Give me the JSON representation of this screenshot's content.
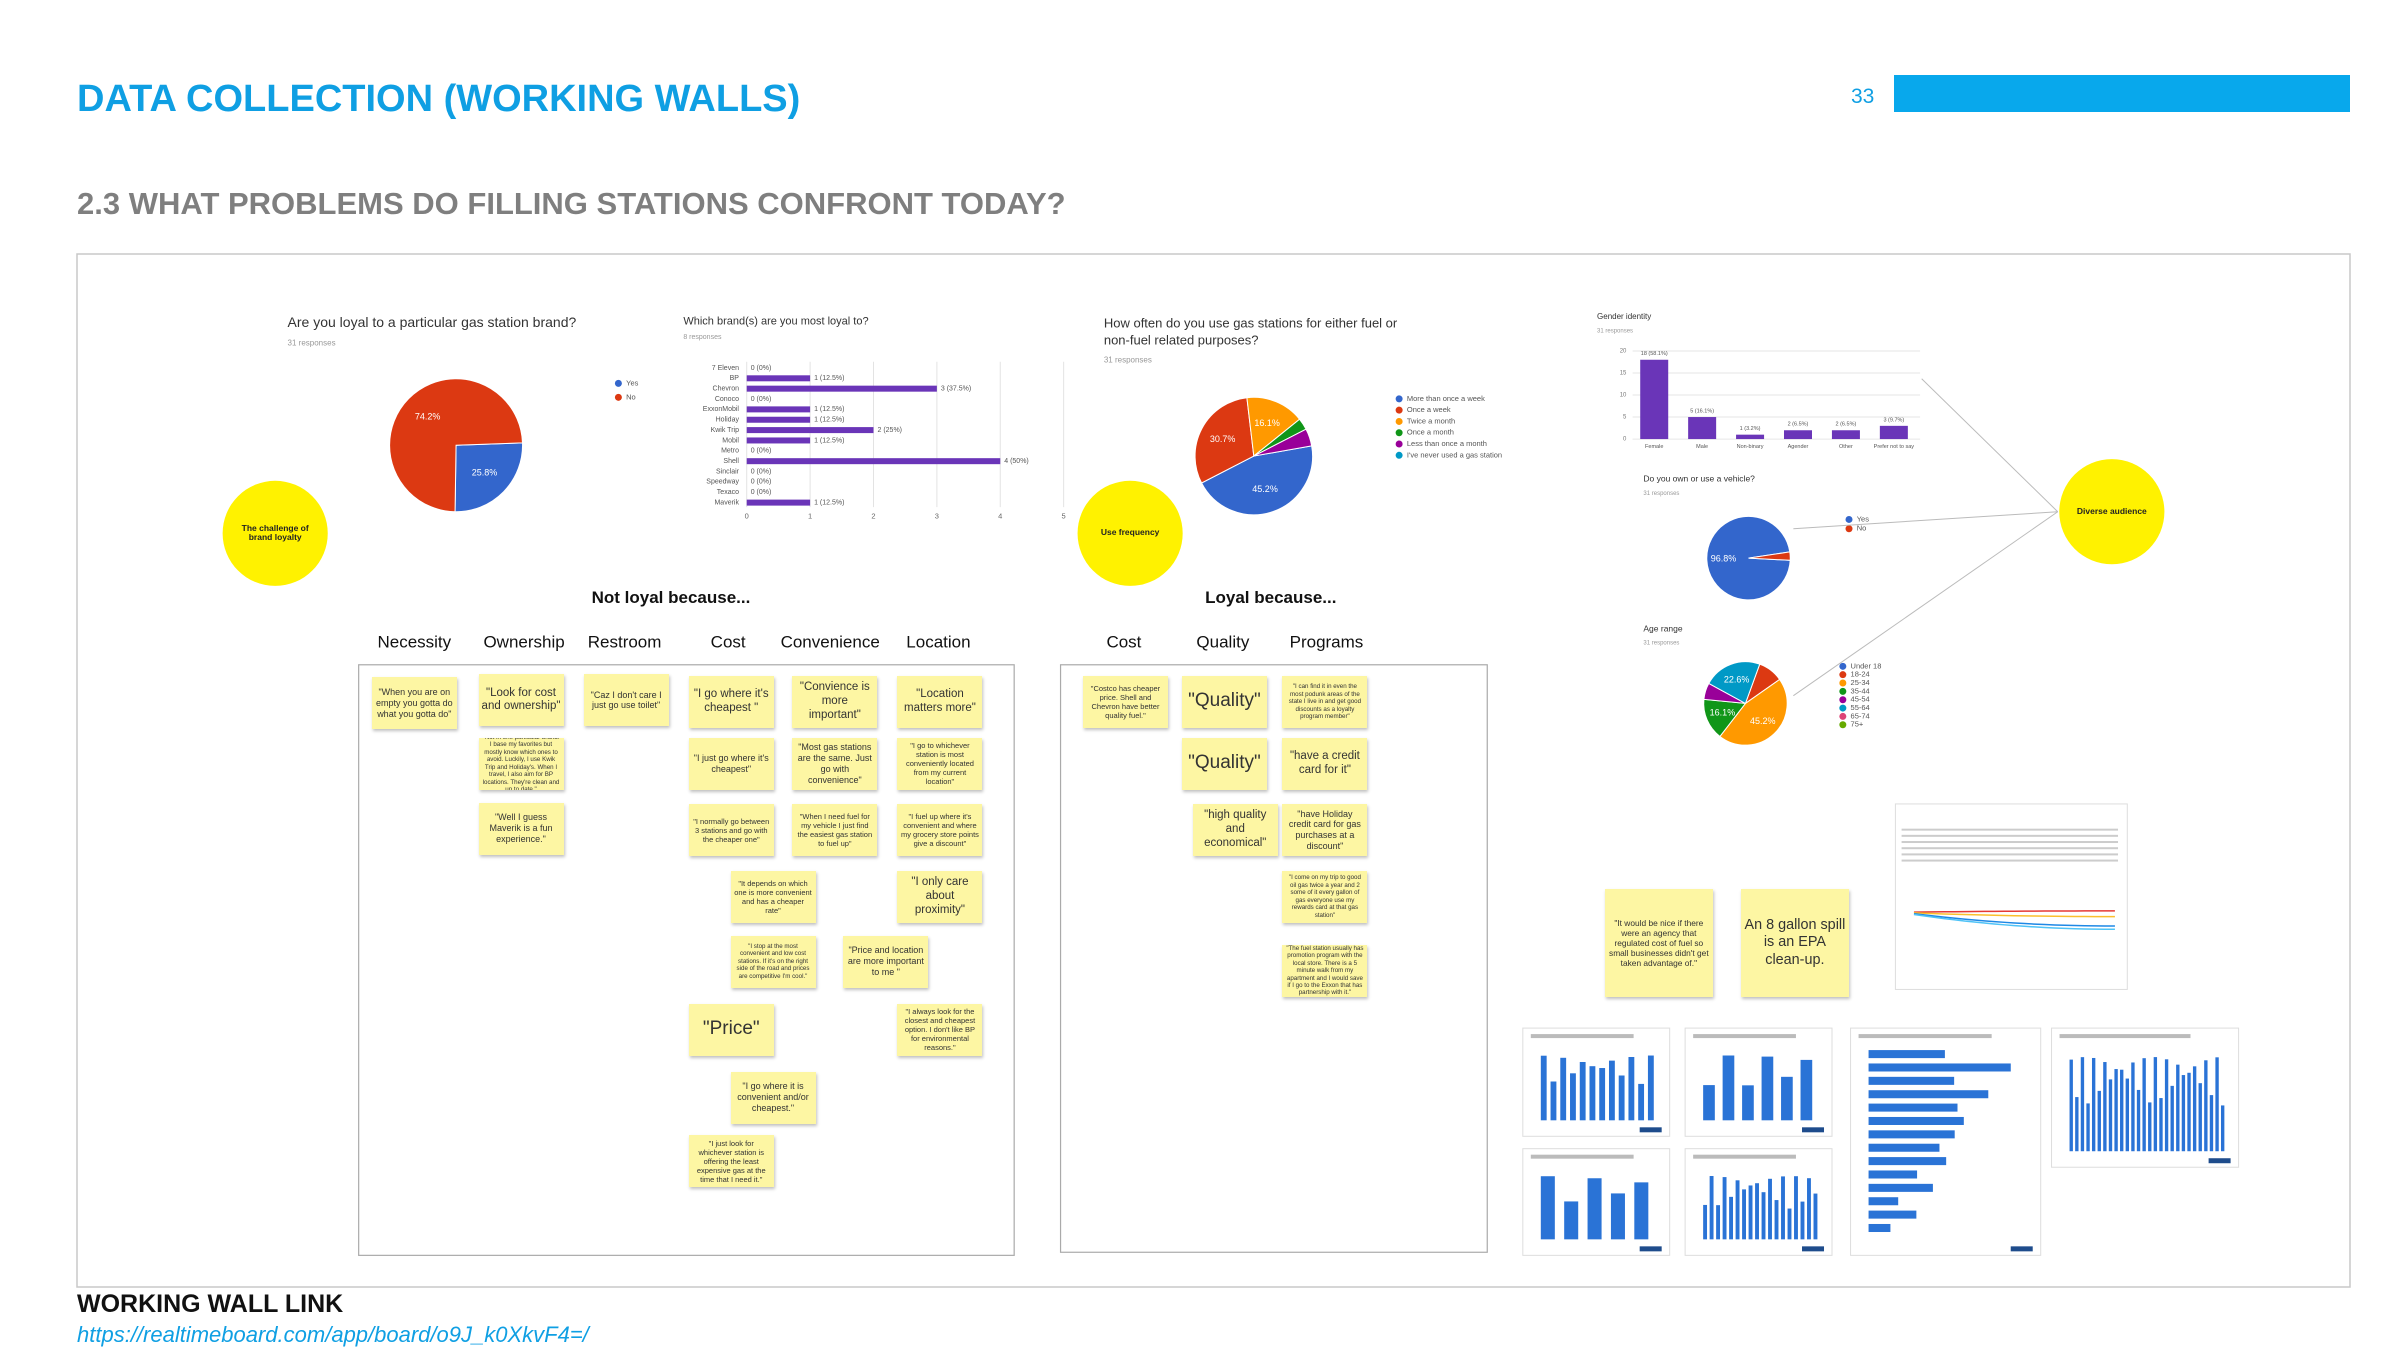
{
  "header": {
    "title": "DATA COLLECTION (WORKING WALLS)",
    "page_number": "33",
    "subtitle": "2.3 WHAT PROBLEMS DO FILLING STATIONS CONFRONT TODAY?"
  },
  "board": {
    "loyalty": {
      "title": "Are you loyal to a particular gas station brand?",
      "responses": "31 responses",
      "slices": [
        {
          "label": "Yes",
          "value": 25.8,
          "value_label": "25.8%",
          "color": "#3366cc"
        },
        {
          "label": "No",
          "value": 74.2,
          "value_label": "74.2%",
          "color": "#dc3912"
        }
      ]
    },
    "loyalty_circle": "The challenge of brand loyalty",
    "brands": {
      "title": "Which brand(s) are you most loyal to?",
      "responses": "8 responses",
      "color": "#6a35b8",
      "xlim": [
        0,
        5
      ],
      "xticks": [
        0,
        1,
        2,
        3,
        4,
        5
      ],
      "rows": [
        {
          "name": "7 Eleven",
          "value": 0,
          "value_label": "0 (0%)"
        },
        {
          "name": "BP",
          "value": 1,
          "value_label": "1 (12.5%)"
        },
        {
          "name": "Chevron",
          "value": 3,
          "value_label": "3 (37.5%)"
        },
        {
          "name": "Conoco",
          "value": 0,
          "value_label": "0 (0%)"
        },
        {
          "name": "ExxonMobil",
          "value": 1,
          "value_label": "1 (12.5%)"
        },
        {
          "name": "Holiday",
          "value": 1,
          "value_label": "1 (12.5%)"
        },
        {
          "name": "Kwik Trip",
          "value": 2,
          "value_label": "2 (25%)"
        },
        {
          "name": "Mobil",
          "value": 1,
          "value_label": "1 (12.5%)"
        },
        {
          "name": "Metro",
          "value": 0,
          "value_label": "0 (0%)"
        },
        {
          "name": "Shell",
          "value": 4,
          "value_label": "4 (50%)"
        },
        {
          "name": "Sinclair",
          "value": 0,
          "value_label": "0 (0%)"
        },
        {
          "name": "Speedway",
          "value": 0,
          "value_label": "0 (0%)"
        },
        {
          "name": "Texaco",
          "value": 0,
          "value_label": "0 (0%)"
        },
        {
          "name": "Maverik",
          "value": 1,
          "value_label": "1 (12.5%)"
        }
      ]
    },
    "frequency": {
      "title": "How often do you use gas stations for either fuel or non-fuel related purposes?",
      "responses": "31 responses",
      "slices": [
        {
          "label": "More than once a week",
          "value": 45.2,
          "value_label": "45.2%",
          "color": "#3366cc"
        },
        {
          "label": "Once a week",
          "value": 30.7,
          "value_label": "30.7%",
          "color": "#dc3912"
        },
        {
          "label": "Twice a month",
          "value": 16.1,
          "value_label": "16.1%",
          "color": "#ff9900"
        },
        {
          "label": "Once a month",
          "value": 3.2,
          "color": "#109618"
        },
        {
          "label": "Less than once a month",
          "value": 4.8,
          "color": "#990099"
        },
        {
          "label": "I've never used a gas station",
          "value": 0,
          "color": "#0099c6"
        }
      ]
    },
    "frequency_circle": "Use frequency",
    "gender": {
      "title": "Gender identity",
      "responses": "31 responses",
      "color": "#6a35b8",
      "ylim": [
        0,
        20
      ],
      "yticks": [
        0,
        5,
        10,
        15,
        20
      ],
      "bars": [
        {
          "name": "Female",
          "value": 18,
          "value_label": "18 (58.1%)"
        },
        {
          "name": "Male",
          "value": 5,
          "value_label": "5 (16.1%)"
        },
        {
          "name": "Non-binary",
          "value": 1,
          "value_label": "1 (3.2%)"
        },
        {
          "name": "Agender",
          "value": 2,
          "value_label": "2 (6.5%)"
        },
        {
          "name": "Other",
          "value": 2,
          "value_label": "2 (6.5%)"
        },
        {
          "name": "Prefer not to say",
          "value": 3,
          "value_label": "3 (9.7%)"
        }
      ]
    },
    "vehicle": {
      "title": "Do you own or use a vehicle?",
      "responses": "31 responses",
      "slices": [
        {
          "label": "Yes",
          "value": 96.8,
          "value_label": "96.8%",
          "color": "#3366cc"
        },
        {
          "label": "No",
          "value": 3.2,
          "color": "#dc3912"
        }
      ]
    },
    "age": {
      "title": "Age range",
      "responses": "31 responses",
      "slices": [
        {
          "label": "Under 18",
          "value": 0,
          "color": "#3366cc"
        },
        {
          "label": "18-24",
          "value": 9.7,
          "color": "#dc3912"
        },
        {
          "label": "25-34",
          "value": 45.2,
          "value_label": "45.2%",
          "color": "#ff9900"
        },
        {
          "label": "35-44",
          "value": 16.1,
          "value_label": "16.1%",
          "color": "#109618"
        },
        {
          "label": "45-54",
          "value": 6.4,
          "color": "#990099"
        },
        {
          "label": "55-64",
          "value": 22.6,
          "value_label": "22.6%",
          "color": "#0099c6"
        },
        {
          "label": "65-74",
          "value": 0,
          "color": "#dd4477"
        },
        {
          "label": "75+",
          "value": 0,
          "color": "#66aa00"
        }
      ]
    },
    "audience_circle": "Diverse audience",
    "not_loyal": {
      "title": "Not loyal because...",
      "columns": [
        {
          "heading": "Necessity",
          "notes": [
            "\"When you are on empty you gotta do what you gotta do\""
          ]
        },
        {
          "heading": "Ownership",
          "notes": [
            "\"Look for cost and ownership\"",
            "\"Not in one particular brand. I base my favorites but mostly know which ones to avoid. Luckily, I use Kwik Trip and Holiday's. When I travel, I also aim for BP locations. They're clean and up to date.\"",
            "\"Well I guess Maverik is a fun experience.\""
          ]
        },
        {
          "heading": "Restroom",
          "notes": [
            "\"Caz I don't care I just go use toilet\""
          ]
        },
        {
          "heading": "Cost",
          "notes": [
            "\"I go where it's cheapest \"",
            "\"I just go where it's cheapest\"",
            "\"I normally go between 3 stations and go with the cheaper one\"",
            "\"It depends on which one is more convenient and has a cheaper rate\"",
            "\"I stop at the most convenient and low cost stations. If it's on the right side of the road and prices are competitive I'm cool.\"",
            "\"Price\"",
            "\"I go where it is convenient and/or cheapest.\"",
            "\"I just look for whichever station is offering the least expensive gas at the time that I need it.\""
          ]
        },
        {
          "heading": "Convenience",
          "notes": [
            "\"Convience is more important\"",
            "\"Most gas stations are the same. Just go with convenience\"",
            "\"When I need fuel for my vehicle I just find the easiest gas station to fuel up\"",
            "\"Price and location are more important to me \""
          ]
        },
        {
          "heading": "Location",
          "notes": [
            "\"Location matters more\"",
            "\"I go to whichever station is most conveniently located from my current location\"",
            "\"I fuel up where it's convenient and where my grocery store points give a discount\"",
            "\"I only care about proximity\"",
            "\"I always look for the closest and cheapest option. I don't like BP for environmental reasons.\""
          ]
        }
      ]
    },
    "loyal": {
      "title": "Loyal because...",
      "columns": [
        {
          "heading": "Cost",
          "notes": [
            "\"Costco has cheaper price. Shell and Chevron have better quality fuel.\""
          ]
        },
        {
          "heading": "Quality",
          "notes": [
            "\"Quality\"",
            "\"Quality\"",
            "\"high quality and economical\""
          ]
        },
        {
          "heading": "Programs",
          "notes": [
            "\"I can find it in even the most podunk areas of the state I live in and get good discounts as a loyalty program member\"",
            "\"have a credit card for it\"",
            "\"have Holiday credit card for gas purchases at a discount\"",
            "\"I come on my trip to good oil gas twice a year and 2 some of it every gallon of gas everyone use my rewards card at that gas station\"",
            "\"The fuel station usually has promotion program with the local store. There is a 5 minute walk from my apartment and I would save if I go to the Exxon that has partnership with it.\""
          ]
        }
      ]
    },
    "extra_notes": [
      "\"It would be nice if there were an agency that regulated cost of fuel so small businesses didn't get taken advantage of.\"",
      "An 8 gallon spill is an EPA clean-up."
    ]
  },
  "footer": {
    "label": "WORKING WALL LINK",
    "link": "https://realtimeboard.com/app/board/o9J_k0XkvF4=/"
  }
}
